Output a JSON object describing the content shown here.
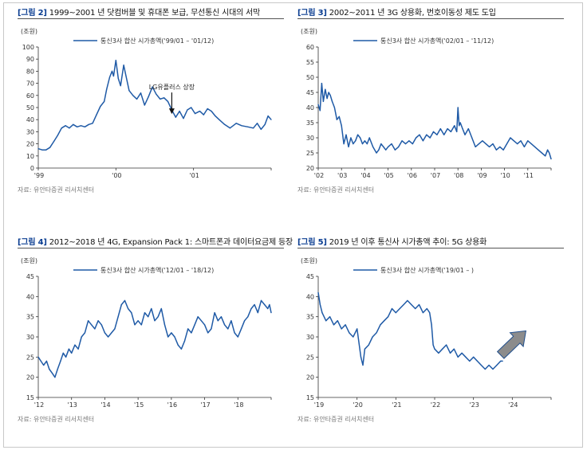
{
  "colors": {
    "line": "#1f5aa6",
    "tag": "#0a3d91",
    "axis": "#333333",
    "arrow_fill": "#8c8c8c",
    "arrow_stroke": "#1f4e8c"
  },
  "source": "자료: 유안타증권 리서치센터",
  "chart_data": [
    {
      "type": "line",
      "tag": "[그림 2]",
      "title": "1999~2001 년 닷컴버블 및 휴대폰 보급, 무선통신 시대의 서막",
      "ylabel": "(조원)",
      "legend": "통신3사 합산 시가총액('99/01 – '01/12)",
      "legend_position": "top-left",
      "ylim": [
        0,
        100
      ],
      "yticks": [
        0,
        10,
        20,
        30,
        40,
        50,
        60,
        70,
        80,
        90,
        100
      ],
      "xlim": [
        1999.0,
        2002.0
      ],
      "xticks": [
        {
          "label": "'99",
          "x": 1999.0
        },
        {
          "label": "'00",
          "x": 2000.0
        },
        {
          "label": "'01",
          "x": 2001.0
        }
      ],
      "annotation": {
        "text": "LG유플러스 상장",
        "x": 2000.72,
        "y": 44
      },
      "x": [
        1999.0,
        1999.05,
        1999.1,
        1999.15,
        1999.2,
        1999.25,
        1999.3,
        1999.35,
        1999.4,
        1999.45,
        1999.5,
        1999.55,
        1999.6,
        1999.65,
        1999.7,
        1999.75,
        1999.8,
        1999.85,
        1999.88,
        1999.92,
        1999.95,
        1999.97,
        2000.0,
        2000.03,
        2000.06,
        2000.1,
        2000.13,
        2000.17,
        2000.22,
        2000.27,
        2000.32,
        2000.37,
        2000.42,
        2000.47,
        2000.52,
        2000.57,
        2000.62,
        2000.67,
        2000.72,
        2000.77,
        2000.82,
        2000.87,
        2000.92,
        2000.97,
        2001.02,
        2001.08,
        2001.13,
        2001.18,
        2001.23,
        2001.28,
        2001.33,
        2001.4,
        2001.47,
        2001.55,
        2001.62,
        2001.7,
        2001.77,
        2001.82,
        2001.87,
        2001.92,
        2001.96,
        2002.0
      ],
      "y": [
        16,
        15,
        15,
        17,
        22,
        27,
        33,
        35,
        33,
        36,
        34,
        35,
        34,
        36,
        37,
        44,
        51,
        55,
        65,
        75,
        80,
        76,
        89,
        74,
        68,
        85,
        76,
        64,
        60,
        57,
        62,
        52,
        59,
        67,
        61,
        57,
        58,
        55,
        48,
        42,
        47,
        41,
        48,
        50,
        45,
        47,
        44,
        49,
        47,
        43,
        40,
        36,
        33,
        37,
        35,
        34,
        33,
        37,
        32,
        36,
        43,
        40
      ]
    },
    {
      "type": "line",
      "tag": "[그림 3]",
      "title": "2002~2011 년 3G 상용화, 번호이동성 제도 도입",
      "ylabel": "(조원)",
      "legend": "통신3사 합산 시가총액('02/01 – '11/12)",
      "legend_position": "top-left",
      "ylim": [
        20,
        60
      ],
      "yticks": [
        20,
        25,
        30,
        35,
        40,
        45,
        50,
        55,
        60
      ],
      "xlim": [
        2002.0,
        2012.0
      ],
      "xticks": [
        {
          "label": "'02",
          "x": 2002.0
        },
        {
          "label": "'03",
          "x": 2003.0
        },
        {
          "label": "'04",
          "x": 2004.0
        },
        {
          "label": "'05",
          "x": 2005.0
        },
        {
          "label": "'06",
          "x": 2006.0
        },
        {
          "label": "'07",
          "x": 2007.0
        },
        {
          "label": "'08",
          "x": 2008.0
        },
        {
          "label": "'09",
          "x": 2009.0
        },
        {
          "label": "'10",
          "x": 2010.0
        },
        {
          "label": "'11",
          "x": 2011.0
        }
      ],
      "x": [
        2002.0,
        2002.08,
        2002.15,
        2002.22,
        2002.3,
        2002.38,
        2002.45,
        2002.52,
        2002.6,
        2002.7,
        2002.8,
        2002.9,
        2003.0,
        2003.1,
        2003.2,
        2003.3,
        2003.4,
        2003.5,
        2003.6,
        2003.7,
        2003.8,
        2003.9,
        2004.0,
        2004.1,
        2004.2,
        2004.35,
        2004.5,
        2004.6,
        2004.7,
        2004.8,
        2004.9,
        2005.0,
        2005.15,
        2005.3,
        2005.45,
        2005.6,
        2005.75,
        2005.9,
        2006.05,
        2006.2,
        2006.35,
        2006.5,
        2006.65,
        2006.8,
        2006.95,
        2007.1,
        2007.25,
        2007.4,
        2007.55,
        2007.7,
        2007.85,
        2007.95,
        2008.0,
        2008.05,
        2008.1,
        2008.2,
        2008.3,
        2008.45,
        2008.6,
        2008.75,
        2008.9,
        2009.05,
        2009.2,
        2009.35,
        2009.5,
        2009.65,
        2009.8,
        2009.95,
        2010.1,
        2010.25,
        2010.4,
        2010.55,
        2010.7,
        2010.85,
        2011.0,
        2011.15,
        2011.3,
        2011.45,
        2011.6,
        2011.75,
        2011.85,
        2011.92,
        2012.0
      ],
      "y": [
        41,
        39,
        48,
        42,
        46,
        43,
        45,
        44,
        42,
        40,
        36,
        37,
        34,
        28,
        31,
        27,
        30,
        28,
        29,
        31,
        30,
        28,
        29,
        28,
        30,
        27,
        25,
        26,
        28,
        27,
        26,
        27,
        28,
        26,
        27,
        29,
        28,
        29,
        28,
        30,
        31,
        29,
        31,
        30,
        32,
        31,
        33,
        31,
        33,
        32,
        34,
        32,
        40,
        34,
        35,
        33,
        31,
        33,
        30,
        27,
        28,
        29,
        28,
        27,
        28,
        26,
        27,
        26,
        28,
        30,
        29,
        28,
        29,
        27,
        29,
        28,
        27,
        26,
        25,
        24,
        26,
        25,
        23
      ]
    },
    {
      "type": "line",
      "tag": "[그림 4]",
      "title": "2012~2018 년 4G, Expansion Pack 1: 스마트폰과 데이터요금제 등장",
      "ylabel": "(조원)",
      "legend": "통신3사 합산 시가총액('12/01 – '18/12)",
      "legend_position": "top-left",
      "ylim": [
        15,
        45
      ],
      "yticks": [
        15,
        20,
        25,
        30,
        35,
        40,
        45
      ],
      "xlim": [
        2012.0,
        2019.0
      ],
      "xticks": [
        {
          "label": "'12",
          "x": 2012.0
        },
        {
          "label": "'13",
          "x": 2013.0
        },
        {
          "label": "'14",
          "x": 2014.0
        },
        {
          "label": "'15",
          "x": 2015.0
        },
        {
          "label": "'16",
          "x": 2016.0
        },
        {
          "label": "'17",
          "x": 2017.0
        },
        {
          "label": "'18",
          "x": 2018.0
        }
      ],
      "x": [
        2012.0,
        2012.08,
        2012.16,
        2012.25,
        2012.33,
        2012.42,
        2012.5,
        2012.58,
        2012.67,
        2012.75,
        2012.83,
        2012.92,
        2013.0,
        2013.1,
        2013.2,
        2013.3,
        2013.4,
        2013.5,
        2013.6,
        2013.7,
        2013.8,
        2013.9,
        2014.0,
        2014.1,
        2014.2,
        2014.3,
        2014.4,
        2014.5,
        2014.6,
        2014.7,
        2014.8,
        2014.9,
        2015.0,
        2015.1,
        2015.2,
        2015.3,
        2015.4,
        2015.5,
        2015.6,
        2015.7,
        2015.8,
        2015.9,
        2016.0,
        2016.1,
        2016.2,
        2016.3,
        2016.4,
        2016.5,
        2016.6,
        2016.7,
        2016.8,
        2016.9,
        2017.0,
        2017.1,
        2017.2,
        2017.3,
        2017.4,
        2017.5,
        2017.6,
        2017.7,
        2017.8,
        2017.9,
        2018.0,
        2018.1,
        2018.2,
        2018.3,
        2018.4,
        2018.5,
        2018.6,
        2018.7,
        2018.8,
        2018.9,
        2018.95,
        2019.0
      ],
      "y": [
        25,
        24,
        23,
        24,
        22,
        21,
        20,
        22,
        24,
        26,
        25,
        27,
        26,
        28,
        27,
        30,
        31,
        34,
        33,
        32,
        34,
        33,
        31,
        30,
        31,
        32,
        35,
        38,
        39,
        37,
        36,
        33,
        34,
        33,
        36,
        35,
        37,
        34,
        35,
        37,
        33,
        30,
        31,
        30,
        28,
        27,
        29,
        32,
        31,
        33,
        35,
        34,
        33,
        31,
        32,
        36,
        34,
        35,
        33,
        32,
        34,
        31,
        30,
        32,
        34,
        35,
        37,
        38,
        36,
        39,
        38,
        37,
        38,
        36
      ]
    },
    {
      "type": "line",
      "tag": "[그림 5]",
      "title": "2019 년 이후 통신사 시가총액 추이: 5G 상용화",
      "ylabel": "(조원)",
      "legend": "통신3사 합산 시가총액('19/01 – )",
      "legend_position": "top-left",
      "ylim": [
        15,
        45
      ],
      "yticks": [
        15,
        20,
        25,
        30,
        35,
        40,
        45
      ],
      "xlim": [
        2019.0,
        2025.0
      ],
      "xticks": [
        {
          "label": "'19",
          "x": 2019.0
        },
        {
          "label": "'20",
          "x": 2020.0
        },
        {
          "label": "'21",
          "x": 2021.0
        },
        {
          "label": "'22",
          "x": 2022.0
        },
        {
          "label": "'23",
          "x": 2023.0
        },
        {
          "label": "'24",
          "x": 2024.0
        }
      ],
      "arrow": {
        "from": [
          2023.7,
          25.5
        ],
        "to": [
          2024.35,
          31.5
        ]
      },
      "x": [
        2019.0,
        2019.05,
        2019.1,
        2019.2,
        2019.3,
        2019.4,
        2019.5,
        2019.6,
        2019.7,
        2019.8,
        2019.9,
        2020.0,
        2020.1,
        2020.15,
        2020.2,
        2020.3,
        2020.4,
        2020.5,
        2020.6,
        2020.7,
        2020.8,
        2020.9,
        2021.0,
        2021.1,
        2021.2,
        2021.3,
        2021.4,
        2021.5,
        2021.6,
        2021.7,
        2021.8,
        2021.87,
        2021.92,
        2021.96,
        2022.0,
        2022.1,
        2022.2,
        2022.3,
        2022.4,
        2022.5,
        2022.6,
        2022.7,
        2022.8,
        2022.9,
        2023.0,
        2023.1,
        2023.2,
        2023.3,
        2023.4,
        2023.5,
        2023.6,
        2023.7,
        2023.75
      ],
      "y": [
        41,
        38,
        36,
        34,
        35,
        33,
        34,
        32,
        33,
        31,
        30,
        32,
        25,
        23,
        27,
        28,
        30,
        31,
        33,
        34,
        35,
        37,
        36,
        37,
        38,
        39,
        38,
        37,
        38,
        36,
        37,
        36,
        33,
        28,
        27,
        26,
        27,
        28,
        26,
        27,
        25,
        26,
        25,
        24,
        25,
        24,
        23,
        22,
        23,
        22,
        23,
        24,
        24
      ]
    }
  ]
}
